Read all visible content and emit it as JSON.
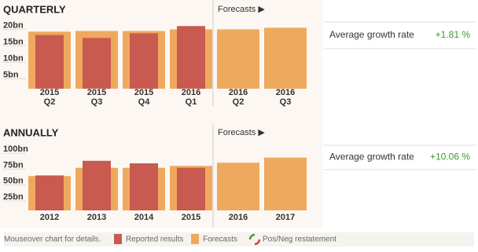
{
  "chart_data": [
    {
      "type": "bar",
      "title": "QUARTERLY",
      "forecast_label": "Forecasts ▶",
      "growth_label": "Average growth rate",
      "growth_value": "+1.81 %",
      "categories": [
        [
          "2015",
          "Q2"
        ],
        [
          "2015",
          "Q3"
        ],
        [
          "2015",
          "Q4"
        ],
        [
          "2016",
          "Q1"
        ],
        [
          "2016",
          "Q2"
        ],
        [
          "2016",
          "Q3"
        ]
      ],
      "series": [
        {
          "name": "Forecasts",
          "color": "#efa95e",
          "values": [
            19.3,
            19.5,
            19.5,
            20,
            20,
            20.5
          ]
        },
        {
          "name": "Reported results",
          "color": "#c95a50",
          "values": [
            18.3,
            17.4,
            18.8,
            21,
            null,
            null
          ]
        }
      ],
      "ylim": [
        2,
        22
      ],
      "yticks": [
        {
          "value": 5,
          "label": "5bn"
        },
        {
          "value": 10,
          "label": "10bn"
        },
        {
          "value": 15,
          "label": "15bn"
        },
        {
          "value": 20,
          "label": "20bn"
        }
      ]
    },
    {
      "type": "bar",
      "title": "ANNUALLY",
      "forecast_label": "Forecasts ▶",
      "growth_label": "Average growth rate",
      "growth_value": "+10.06 %",
      "categories": [
        [
          "2012"
        ],
        [
          "2013"
        ],
        [
          "2014"
        ],
        [
          "2015"
        ],
        [
          "2016"
        ],
        [
          "2017"
        ]
      ],
      "series": [
        {
          "name": "Forecasts",
          "color": "#efa95e",
          "values": [
            64,
            77,
            77,
            80,
            85,
            93
          ]
        },
        {
          "name": "Reported results",
          "color": "#c95a50",
          "values": [
            65,
            88,
            84,
            77,
            null,
            null
          ]
        }
      ],
      "ylim": [
        10,
        110
      ],
      "yticks": [
        {
          "value": 25,
          "label": "25bn"
        },
        {
          "value": 50,
          "label": "50bn"
        },
        {
          "value": 75,
          "label": "75bn"
        },
        {
          "value": 100,
          "label": "100bn"
        }
      ]
    }
  ],
  "footer": {
    "note": "Mouseover chart for details.",
    "reported": "Reported results",
    "forecasts": "Forecasts",
    "restatement": "Pos/Neg restatement"
  }
}
